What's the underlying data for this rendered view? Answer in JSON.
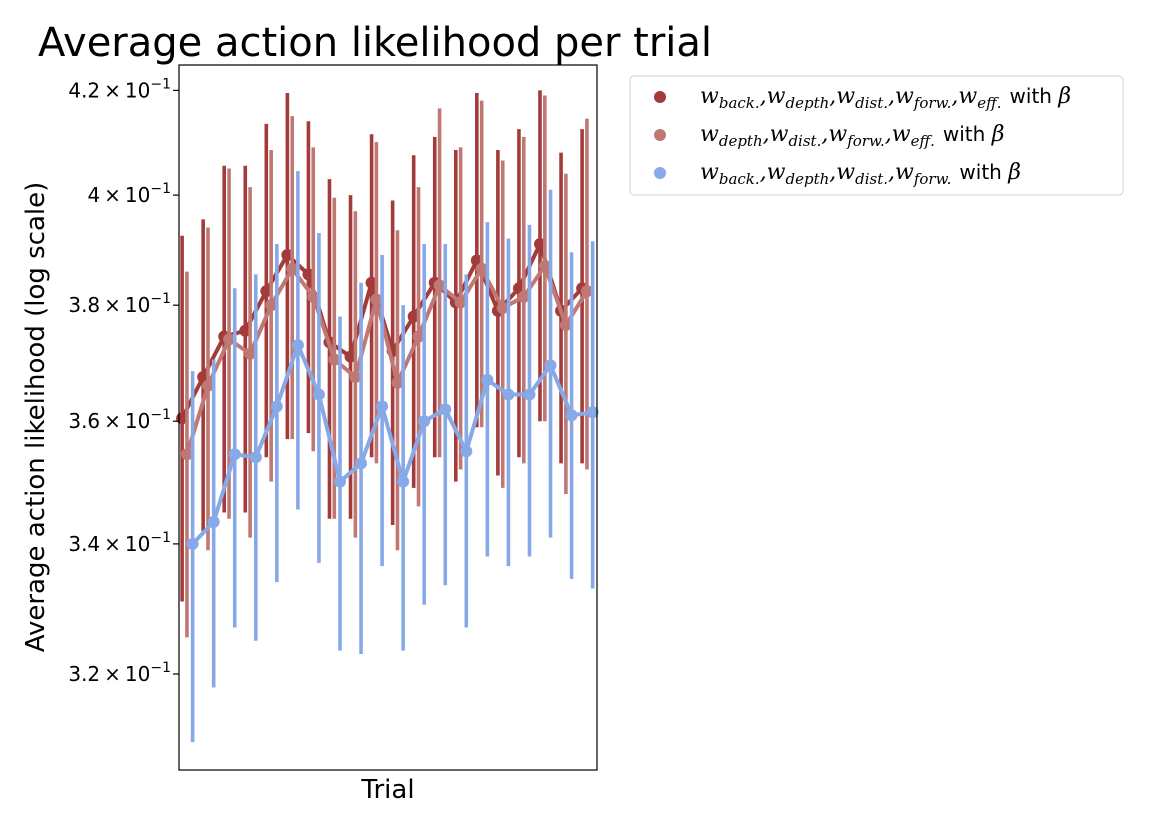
{
  "chart_data": {
    "type": "line",
    "title": "Average action likelihood per trial",
    "xlabel": "Trial",
    "ylabel": "Average action likelihood (log scale)",
    "yscale": "log",
    "ylim": [
      0.306,
      0.425
    ],
    "yticks": [
      {
        "value": 0.32,
        "mantissa": "3.2",
        "label": "3.2 × 10^-1"
      },
      {
        "value": 0.34,
        "mantissa": "3.4",
        "label": "3.4 × 10^-1"
      },
      {
        "value": 0.36,
        "mantissa": "3.6",
        "label": "3.6 × 10^-1"
      },
      {
        "value": 0.38,
        "mantissa": "3.8",
        "label": "3.8 × 10^-1"
      },
      {
        "value": 0.4,
        "mantissa": "4",
        "label": "4 × 10^-1"
      },
      {
        "value": 0.42,
        "mantissa": "4.2",
        "label": "4.2 × 10^-1"
      }
    ],
    "x": [
      1,
      2,
      3,
      4,
      5,
      6,
      7,
      8,
      9,
      10,
      11,
      12,
      13,
      14,
      15,
      16,
      17,
      18,
      19,
      20
    ],
    "legend_position": "outside-upper-right",
    "grid": false,
    "series": [
      {
        "color": "#a33b3b",
        "offset": -0.28,
        "legend": {
          "terms": [
            [
              "w",
              "back."
            ],
            [
              "w",
              "depth"
            ],
            [
              "w",
              "dist."
            ],
            [
              "w",
              "forw."
            ],
            [
              "w",
              "eff."
            ]
          ],
          "suffix": "with",
          "symbol": "β"
        },
        "values": [
          0.3605,
          0.3675,
          0.3745,
          0.3755,
          0.3825,
          0.389,
          0.3855,
          0.3735,
          0.371,
          0.384,
          0.372,
          0.378,
          0.384,
          0.3805,
          0.388,
          0.379,
          0.383,
          0.391,
          0.379,
          0.383
        ],
        "lower": [
          0.331,
          0.342,
          0.345,
          0.345,
          0.354,
          0.357,
          0.358,
          0.344,
          0.344,
          0.354,
          0.343,
          0.349,
          0.354,
          0.35,
          0.359,
          0.351,
          0.354,
          0.36,
          0.353,
          0.353
        ],
        "upper": [
          0.3925,
          0.3955,
          0.4055,
          0.4055,
          0.4135,
          0.4195,
          0.414,
          0.403,
          0.4,
          0.4115,
          0.399,
          0.4075,
          0.411,
          0.4085,
          0.4195,
          0.4085,
          0.4125,
          0.42,
          0.408,
          0.4125
        ]
      },
      {
        "color": "#bf7873",
        "offset": -0.05,
        "legend": {
          "terms": [
            [
              "w",
              "depth"
            ],
            [
              "w",
              "dist."
            ],
            [
              "w",
              "forw."
            ],
            [
              "w",
              "eff."
            ]
          ],
          "suffix": "with",
          "symbol": "β"
        },
        "values": [
          0.3545,
          0.366,
          0.374,
          0.3715,
          0.38,
          0.3865,
          0.3815,
          0.3705,
          0.3675,
          0.381,
          0.3665,
          0.3745,
          0.3835,
          0.3805,
          0.3865,
          0.3795,
          0.3815,
          0.387,
          0.3765,
          0.3825
        ],
        "lower": [
          0.3255,
          0.339,
          0.344,
          0.341,
          0.35,
          0.357,
          0.355,
          0.344,
          0.341,
          0.353,
          0.339,
          0.346,
          0.354,
          0.352,
          0.359,
          0.349,
          0.353,
          0.36,
          0.348,
          0.352
        ],
        "upper": [
          0.386,
          0.394,
          0.405,
          0.4015,
          0.4085,
          0.415,
          0.409,
          0.3995,
          0.397,
          0.41,
          0.3935,
          0.4015,
          0.4165,
          0.409,
          0.418,
          0.4065,
          0.411,
          0.419,
          0.404,
          0.4145
        ]
      },
      {
        "color": "#87a9e8",
        "offset": 0.22,
        "legend": {
          "terms": [
            [
              "w",
              "back."
            ],
            [
              "w",
              "depth"
            ],
            [
              "w",
              "dist."
            ],
            [
              "w",
              "forw."
            ]
          ],
          "suffix": "with",
          "symbol": "β"
        },
        "values": [
          0.34,
          0.3435,
          0.3545,
          0.354,
          0.3625,
          0.373,
          0.3645,
          0.35,
          0.353,
          0.3625,
          0.35,
          0.36,
          0.362,
          0.355,
          0.367,
          0.3645,
          0.3645,
          0.3695,
          0.361,
          0.3615
        ],
        "lower": [
          0.31,
          0.318,
          0.327,
          0.325,
          0.334,
          0.3455,
          0.337,
          0.3235,
          0.323,
          0.3365,
          0.3235,
          0.3305,
          0.3335,
          0.327,
          0.338,
          0.3365,
          0.338,
          0.341,
          0.3345,
          0.333
        ],
        "upper": [
          0.3685,
          0.3705,
          0.383,
          0.3855,
          0.391,
          0.4045,
          0.393,
          0.378,
          0.384,
          0.389,
          0.38,
          0.391,
          0.391,
          0.3855,
          0.395,
          0.392,
          0.3945,
          0.401,
          0.3895,
          0.3915
        ]
      }
    ]
  }
}
